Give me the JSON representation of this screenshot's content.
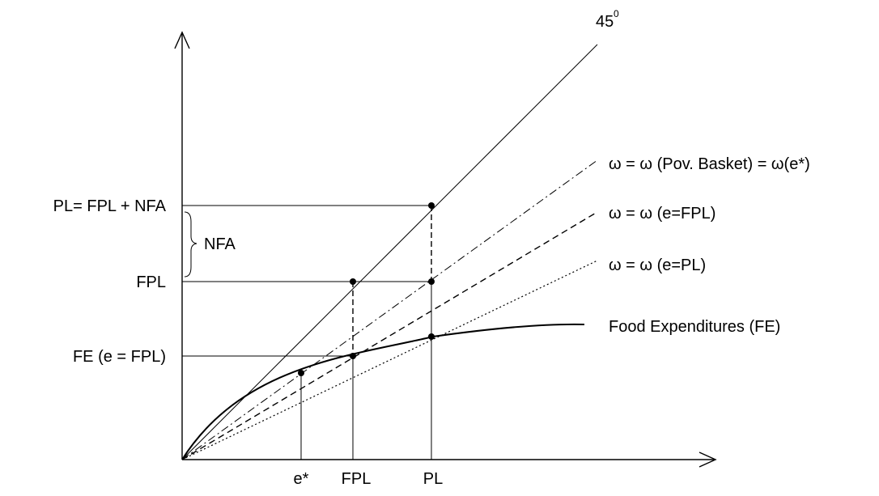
{
  "diagram": {
    "labels": {
      "angle": "45",
      "angle_degree": "0",
      "y_pl": "PL= FPL + NFA",
      "y_fpl": "FPL",
      "y_fe": "FE (e = FPL)",
      "nfa": "NFA",
      "x_estar": "e*",
      "x_fpl": "FPL",
      "x_pl": "PL",
      "ray_pov": "ω = ω (Pov. Basket) = ω(e*)",
      "ray_fpl": "ω = ω (e=FPL)",
      "ray_pl": "ω = ω (e=PL)",
      "curve_fe": "Food Expenditures (FE)"
    }
  }
}
